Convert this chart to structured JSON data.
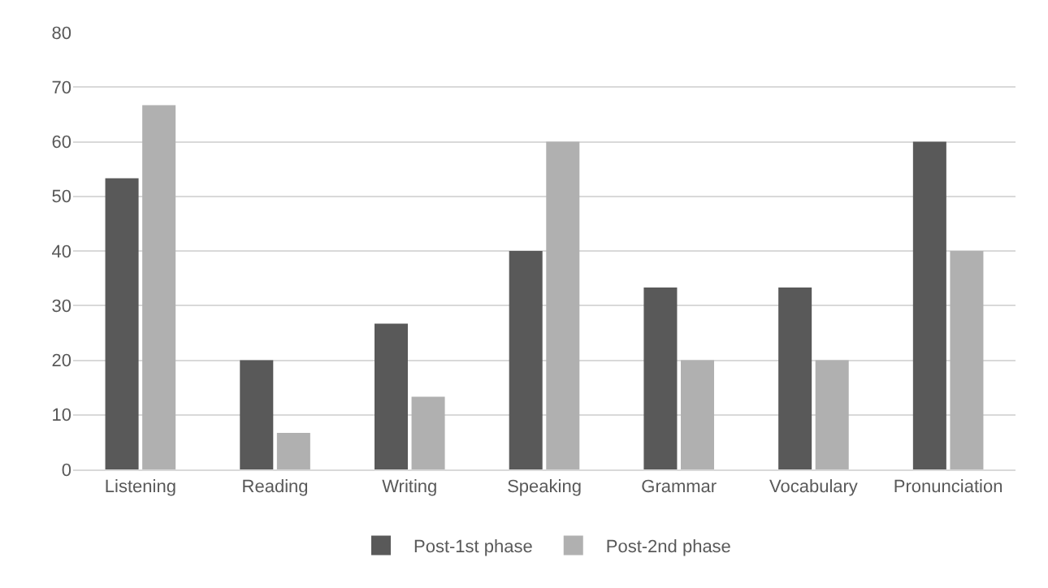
{
  "chart_data": {
    "type": "bar",
    "categories": [
      "Listening",
      "Reading",
      "Writing",
      "Speaking",
      "Grammar",
      "Vocabulary",
      "Pronunciation"
    ],
    "series": [
      {
        "name": "Post-1st phase",
        "color": "#595959",
        "values": [
          53.3,
          20,
          26.7,
          40,
          33.3,
          33.3,
          60
        ]
      },
      {
        "name": "Post-2nd phase",
        "color": "#b0b0b0",
        "values": [
          66.7,
          6.7,
          13.3,
          60,
          20,
          20,
          40
        ]
      }
    ],
    "ylim": [
      0,
      80
    ],
    "yticks": [
      0,
      10,
      20,
      30,
      40,
      50,
      60,
      70,
      80
    ],
    "grid": "y",
    "legend": "bottom"
  }
}
